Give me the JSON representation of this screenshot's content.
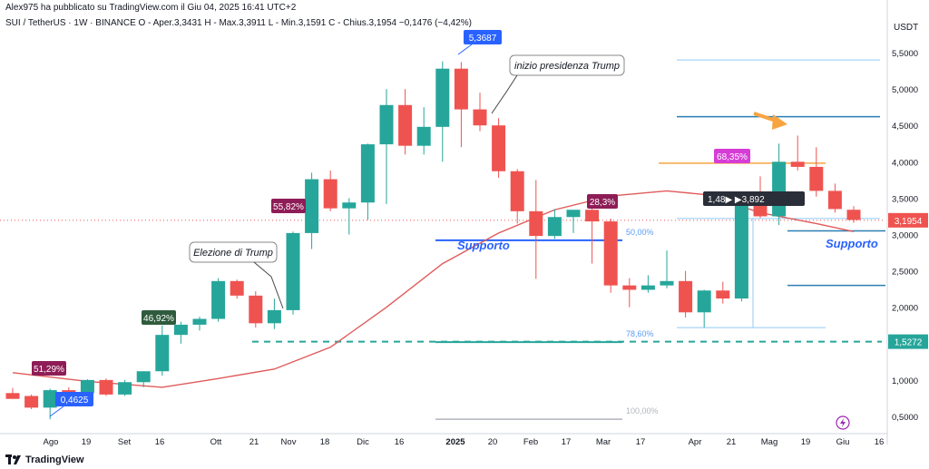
{
  "header": {
    "published": "Alex975 ha pubblicato su TradingView.com il Giu 04, 2025 16:41 UTC+2",
    "ohlc_line": "SUI / TetherUS · 1W · BINANCE  O - Aper.3,3431  H - Max.3,3911  L - Min.3,1591  C - Chius.3,1954  −0,1476 (−4,42%)",
    "currency": "USDT"
  },
  "footer": {
    "brand": "TradingView"
  },
  "colors": {
    "up": "#26a69a",
    "down": "#ef5350",
    "ma": "#e05b5b",
    "support": "#2962ff",
    "dashed": "#26a69a",
    "fib": "#90caf9",
    "orange": "#f7a440",
    "blue_label": "#2962ff"
  },
  "chart_data": {
    "type": "candlestick",
    "symbol": "SUI / TetherUS",
    "timeframe": "1W",
    "exchange": "BINANCE",
    "x_ticks": [
      "Ago",
      "19",
      "Set",
      "16",
      "Ott",
      "21",
      "Nov",
      "18",
      "Dic",
      "16",
      "2025",
      "20",
      "Feb",
      "17",
      "Mar",
      "17",
      "Apr",
      "21",
      "Mag",
      "19",
      "Giu",
      "16"
    ],
    "y_ticks": [
      "5,5000",
      "5,0000",
      "4,5000",
      "4,0000",
      "3,5000",
      "3,0000",
      "2,5000",
      "2,0000",
      "1,5000",
      "1,0000",
      "0,5000"
    ],
    "ylim": [
      0.3,
      5.8
    ],
    "candles": [
      [
        0.82,
        0.89,
        0.78,
        0.74
      ],
      [
        0.78,
        0.8,
        0.6,
        0.62
      ],
      [
        0.62,
        0.88,
        0.46,
        0.86
      ],
      [
        0.86,
        0.9,
        0.82,
        0.82
      ],
      [
        0.82,
        1.01,
        0.78,
        1.0
      ],
      [
        1.0,
        1.02,
        0.78,
        0.8
      ],
      [
        0.8,
        1.0,
        0.78,
        0.97
      ],
      [
        0.97,
        1.12,
        0.9,
        1.12
      ],
      [
        1.12,
        1.75,
        1.06,
        1.62
      ],
      [
        1.62,
        1.8,
        1.5,
        1.76
      ],
      [
        1.76,
        1.87,
        1.68,
        1.84
      ],
      [
        1.84,
        2.4,
        1.8,
        2.36
      ],
      [
        2.36,
        2.38,
        2.12,
        2.16
      ],
      [
        2.16,
        2.22,
        1.72,
        1.78
      ],
      [
        1.78,
        2.12,
        1.7,
        1.96
      ],
      [
        1.96,
        3.04,
        1.9,
        3.02
      ],
      [
        3.02,
        3.85,
        2.8,
        3.76
      ],
      [
        3.76,
        3.88,
        3.32,
        3.36
      ],
      [
        3.36,
        3.5,
        3.0,
        3.44
      ],
      [
        3.44,
        4.25,
        3.2,
        4.24
      ],
      [
        4.24,
        5.0,
        3.42,
        4.78
      ],
      [
        4.78,
        5.0,
        4.1,
        4.22
      ],
      [
        4.22,
        4.75,
        4.1,
        4.48
      ],
      [
        4.48,
        5.38,
        4.0,
        5.28
      ],
      [
        5.28,
        5.37,
        4.2,
        4.72
      ],
      [
        4.72,
        4.95,
        4.42,
        4.5
      ],
      [
        4.5,
        4.6,
        3.78,
        3.87
      ],
      [
        3.87,
        3.9,
        3.15,
        3.32
      ],
      [
        3.32,
        3.75,
        2.39,
        2.98
      ],
      [
        2.98,
        3.35,
        2.94,
        3.24
      ],
      [
        3.24,
        3.3,
        3.02,
        3.34
      ],
      [
        3.34,
        3.4,
        2.6,
        3.18
      ],
      [
        3.18,
        3.22,
        2.2,
        2.3
      ],
      [
        2.3,
        2.4,
        2.0,
        2.24
      ],
      [
        2.24,
        2.44,
        2.2,
        2.3
      ],
      [
        2.3,
        2.78,
        2.26,
        2.36
      ],
      [
        2.36,
        2.5,
        1.86,
        1.93
      ],
      [
        1.93,
        2.24,
        1.72,
        2.23
      ],
      [
        2.23,
        2.35,
        2.05,
        2.12
      ],
      [
        2.12,
        3.56,
        2.08,
        3.56
      ],
      [
        3.56,
        3.8,
        3.23,
        3.25
      ],
      [
        3.25,
        4.25,
        3.13,
        4.0
      ],
      [
        4.0,
        4.36,
        3.88,
        3.93
      ],
      [
        3.93,
        4.2,
        3.52,
        3.6
      ],
      [
        3.6,
        3.7,
        3.3,
        3.35
      ],
      [
        3.34,
        3.39,
        3.16,
        3.2
      ]
    ],
    "moving_average": [
      [
        0,
        1.1
      ],
      [
        4,
        0.98
      ],
      [
        8,
        0.9
      ],
      [
        11,
        1.02
      ],
      [
        14,
        1.15
      ],
      [
        17,
        1.45
      ],
      [
        20,
        2.0
      ],
      [
        23,
        2.6
      ],
      [
        26,
        3.02
      ],
      [
        29,
        3.34
      ],
      [
        32,
        3.53
      ],
      [
        35,
        3.6
      ],
      [
        37,
        3.55
      ],
      [
        40,
        3.3
      ],
      [
        43,
        3.15
      ],
      [
        45,
        3.04
      ]
    ],
    "annotations": [
      {
        "label": "inizio presidenza Trump",
        "kind": "callout"
      },
      {
        "label": "Elezione di Trump",
        "kind": "callout"
      },
      {
        "label": "Supporto",
        "kind": "support"
      },
      {
        "label": "Supporto",
        "kind": "support"
      },
      {
        "label": "50,00%",
        "kind": "fib"
      },
      {
        "label": "78,60%",
        "kind": "fib"
      },
      {
        "label": "100,00%",
        "kind": "fib"
      }
    ],
    "pct_labels": [
      "51,29%",
      "46,92%",
      "55,82%",
      "28,3%",
      "68,35%"
    ],
    "price_labels": {
      "high": "5,3687",
      "low": "0,4625",
      "current": "3,1954",
      "dashed": "1,5272"
    },
    "dark_label": "1,48▶  ▶3,892",
    "support_level": 2.92,
    "dashed_level": 1.527,
    "current_price": 3.1954,
    "current_line": 3.195,
    "fib_levels": [
      2.92,
      1.52,
      0.46
    ],
    "right_levels": [
      5.4,
      4.62,
      3.98,
      3.05,
      2.3,
      1.72
    ]
  }
}
